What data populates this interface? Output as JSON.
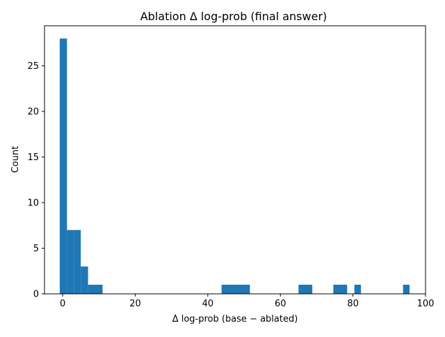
{
  "chart_data": {
    "type": "bar",
    "title": "Ablation Δ log-prob (final answer)",
    "xlabel": "Δ log-prob (base − ablated)",
    "ylabel": "Count",
    "xlim": [
      -5,
      100
    ],
    "ylim": [
      0,
      29.4
    ],
    "grid": false,
    "bar_color": "#1f77b4",
    "xticks": [
      0,
      20,
      40,
      60,
      80,
      100
    ],
    "yticks": [
      0,
      5,
      10,
      15,
      20,
      25
    ],
    "bins": [
      {
        "x0": -0.8,
        "x1": 1.2,
        "count": 28
      },
      {
        "x0": 1.2,
        "x1": 3.2,
        "count": 7
      },
      {
        "x0": 3.2,
        "x1": 5.0,
        "count": 7
      },
      {
        "x0": 5.0,
        "x1": 7.0,
        "count": 3
      },
      {
        "x0": 7.0,
        "x1": 11.0,
        "count": 1
      },
      {
        "x0": 43.8,
        "x1": 51.6,
        "count": 1
      },
      {
        "x0": 65.0,
        "x1": 68.8,
        "count": 1
      },
      {
        "x0": 74.6,
        "x1": 78.4,
        "count": 1
      },
      {
        "x0": 80.4,
        "x1": 82.2,
        "count": 1
      },
      {
        "x0": 93.8,
        "x1": 95.6,
        "count": 1
      }
    ]
  }
}
